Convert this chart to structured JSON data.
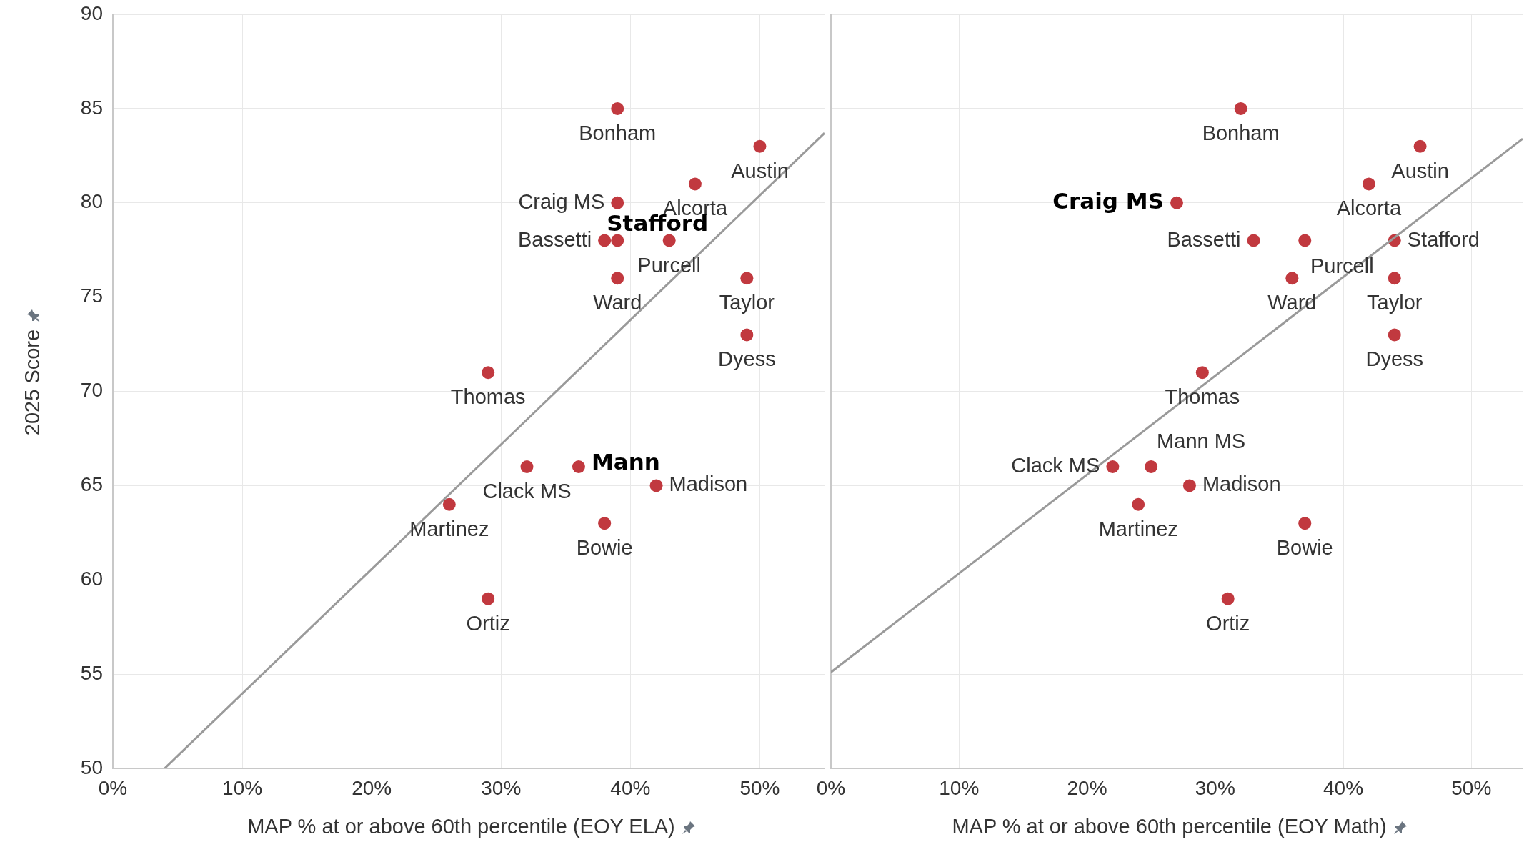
{
  "chart_data": [
    {
      "type": "scatter",
      "xlabel": "MAP % at or above 60th percentile (EOY ELA)",
      "ylabel": "2025 Score",
      "marker": "circle",
      "grid": true,
      "xlim": [
        0,
        55
      ],
      "xticks": [
        {
          "value": 0,
          "label": "0%"
        },
        {
          "value": 10,
          "label": "10%"
        },
        {
          "value": 20,
          "label": "20%"
        },
        {
          "value": 30,
          "label": "30%"
        },
        {
          "value": 40,
          "label": "40%"
        },
        {
          "value": 50,
          "label": "50%"
        }
      ],
      "ylim": [
        50,
        90
      ],
      "yticks": [
        50,
        55,
        60,
        65,
        70,
        75,
        80,
        85,
        90
      ],
      "series": [
        {
          "color": "#c1393f",
          "x": [
            39,
            50,
            39,
            45,
            38,
            39,
            43,
            39,
            49,
            49,
            29,
            32,
            36,
            42,
            26,
            38,
            29
          ],
          "values": [
            85,
            83,
            80,
            81,
            78,
            78,
            78,
            76,
            76,
            73,
            71,
            66,
            66,
            65,
            64,
            63,
            59
          ]
        },
        {
          "type": "line",
          "marker": "none",
          "color": "#9a9a9a",
          "x": [
            4,
            55
          ],
          "values": [
            50,
            83.7
          ]
        }
      ],
      "annotations": [
        {
          "text": "Bonham",
          "x": 39,
          "y": 85
        },
        {
          "text": "Austin",
          "x": 50,
          "y": 83
        },
        {
          "text": "Craig MS",
          "x": 39,
          "y": 80
        },
        {
          "text": "Alcorta",
          "x": 45,
          "y": 81
        },
        {
          "text": "Bassetti",
          "x": 38,
          "y": 78
        },
        {
          "text": "Stafford",
          "x": 39,
          "y": 78
        },
        {
          "text": "Purcell",
          "x": 43,
          "y": 78
        },
        {
          "text": "Ward",
          "x": 39,
          "y": 76
        },
        {
          "text": "Taylor",
          "x": 49,
          "y": 76
        },
        {
          "text": "Dyess",
          "x": 49,
          "y": 73
        },
        {
          "text": "Thomas",
          "x": 29,
          "y": 71
        },
        {
          "text": "Clack MS",
          "x": 32,
          "y": 66
        },
        {
          "text": "Mann",
          "x": 36,
          "y": 66
        },
        {
          "text": "Madison",
          "x": 42,
          "y": 65
        },
        {
          "text": "Martinez",
          "x": 26,
          "y": 64
        },
        {
          "text": "Bowie",
          "x": 38,
          "y": 63
        },
        {
          "text": "Ortiz",
          "x": 29,
          "y": 59
        }
      ]
    },
    {
      "type": "scatter",
      "xlabel": "MAP % at or above 60th percentile (EOY Math)",
      "marker": "circle",
      "grid": true,
      "tick_labels": "x",
      "xlim": [
        0,
        54
      ],
      "xticks": [
        {
          "value": 0,
          "label": "0%"
        },
        {
          "value": 10,
          "label": "10%"
        },
        {
          "value": 20,
          "label": "20%"
        },
        {
          "value": 30,
          "label": "30%"
        },
        {
          "value": 40,
          "label": "40%"
        },
        {
          "value": 50,
          "label": "50%"
        }
      ],
      "ylim": [
        50,
        90
      ],
      "yticks": [
        50,
        55,
        60,
        65,
        70,
        75,
        80,
        85,
        90
      ],
      "series": [
        {
          "color": "#c1393f",
          "x": [
            32,
            46,
            27,
            42,
            33,
            44,
            37,
            36,
            44,
            44,
            29,
            22,
            25,
            28,
            24,
            37,
            31
          ],
          "values": [
            85,
            83,
            80,
            81,
            78,
            78,
            78,
            76,
            76,
            73,
            71,
            66,
            66,
            65,
            64,
            63,
            59
          ]
        },
        {
          "type": "line",
          "marker": "none",
          "color": "#9a9a9a",
          "x": [
            0,
            54
          ],
          "values": [
            55.1,
            83.4
          ]
        }
      ],
      "annotations": [
        {
          "text": "Bonham",
          "x": 32,
          "y": 85
        },
        {
          "text": "Austin",
          "x": 46,
          "y": 83
        },
        {
          "text": "Craig MS",
          "x": 27,
          "y": 80
        },
        {
          "text": "Alcorta",
          "x": 42,
          "y": 81
        },
        {
          "text": "Bassetti",
          "x": 33,
          "y": 78
        },
        {
          "text": "Stafford",
          "x": 44,
          "y": 78
        },
        {
          "text": "Purcell",
          "x": 37,
          "y": 78
        },
        {
          "text": "Ward",
          "x": 36,
          "y": 76
        },
        {
          "text": "Taylor",
          "x": 44,
          "y": 76
        },
        {
          "text": "Dyess",
          "x": 44,
          "y": 73
        },
        {
          "text": "Thomas",
          "x": 29,
          "y": 71
        },
        {
          "text": "Clack MS",
          "x": 22,
          "y": 66
        },
        {
          "text": "Mann MS",
          "x": 25,
          "y": 66
        },
        {
          "text": "Madison",
          "x": 28,
          "y": 65
        },
        {
          "text": "Martinez",
          "x": 24,
          "y": 64
        },
        {
          "text": "Bowie",
          "x": 37,
          "y": 63
        },
        {
          "text": "Ortiz",
          "x": 31,
          "y": 59
        }
      ]
    }
  ]
}
